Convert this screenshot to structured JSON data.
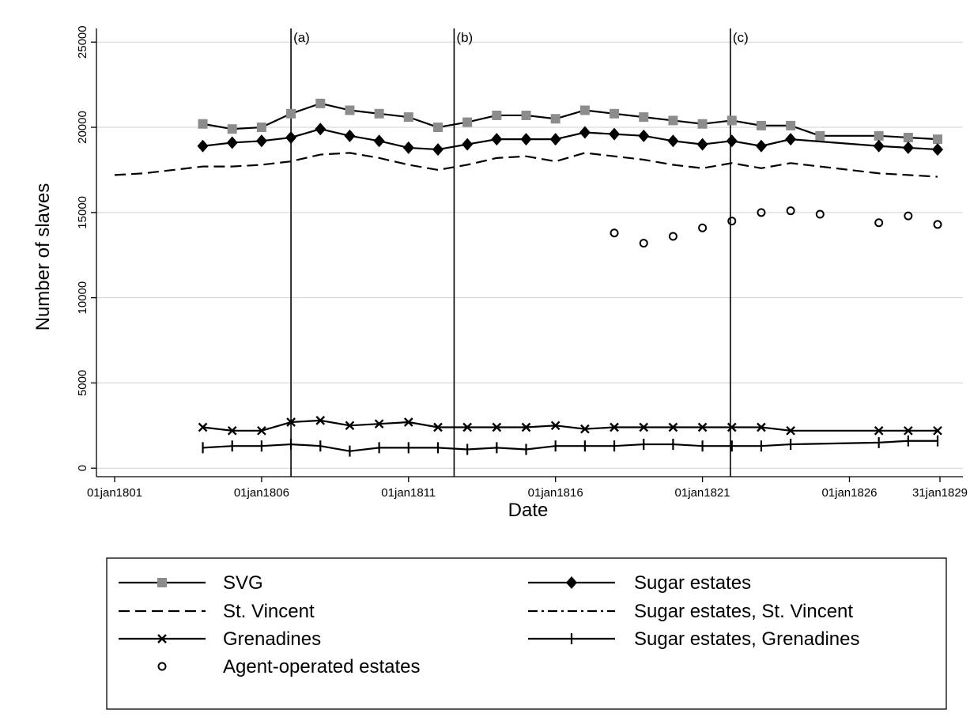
{
  "chart_data": {
    "type": "line",
    "xlabel": "Date",
    "ylabel": "Number of slaves",
    "xlim": [
      1801,
      1829.08
    ],
    "ylim": [
      -500,
      25800
    ],
    "yticks": [
      0,
      5000,
      10000,
      15000,
      20000,
      25000
    ],
    "yticklabels": [
      "0",
      "5000",
      "10000",
      "15000",
      "20000",
      "25000"
    ],
    "xticks": [
      1801,
      1806,
      1811,
      1816,
      1821,
      1826,
      1829.08
    ],
    "xticklabels": [
      "01jan1801",
      "01jan1806",
      "01jan1811",
      "01jan1816",
      "01jan1821",
      "01jan1826",
      "31jan1829"
    ],
    "grid": true,
    "reference_lines": [
      {
        "x": 1807,
        "label": "(a)"
      },
      {
        "x": 1812.55,
        "label": "(b)"
      },
      {
        "x": 1821.95,
        "label": "(c)"
      }
    ],
    "series": [
      {
        "name": "SVG",
        "style": "solid",
        "marker": "square",
        "color": "#8c8c8c",
        "x": [
          1804,
          1805,
          1806,
          1807,
          1808,
          1809,
          1810,
          1811,
          1812,
          1813,
          1814,
          1815,
          1816,
          1817,
          1818,
          1819,
          1820,
          1821,
          1822,
          1823,
          1824,
          1825,
          1827,
          1828,
          1829
        ],
        "y": [
          20200,
          19900,
          20000,
          20800,
          21400,
          21000,
          20800,
          20600,
          20000,
          20300,
          20700,
          20700,
          20500,
          21000,
          20800,
          20600,
          20400,
          20200,
          20400,
          20100,
          20100,
          19500,
          19500,
          19400,
          19300
        ]
      },
      {
        "name": "Sugar estates",
        "style": "solid",
        "marker": "diamond",
        "color": "#000000",
        "x": [
          1804,
          1805,
          1806,
          1807,
          1808,
          1809,
          1810,
          1811,
          1812,
          1813,
          1814,
          1815,
          1816,
          1817,
          1818,
          1819,
          1820,
          1821,
          1822,
          1823,
          1824,
          1827,
          1828,
          1829
        ],
        "y": [
          18900,
          19100,
          19200,
          19400,
          19900,
          19500,
          19200,
          18800,
          18700,
          19000,
          19300,
          19300,
          19300,
          19700,
          19600,
          19500,
          19200,
          19000,
          19200,
          18900,
          19300,
          18900,
          18800,
          18700
        ]
      },
      {
        "name": "St. Vincent",
        "style": "dash",
        "marker": "none",
        "color": "#000000",
        "x": [
          1801,
          1802,
          1803,
          1804,
          1805,
          1806,
          1807,
          1808,
          1809,
          1810,
          1811,
          1812,
          1813,
          1814,
          1815,
          1816,
          1817,
          1818,
          1819,
          1820,
          1821,
          1822,
          1823,
          1824,
          1825,
          1826,
          1827,
          1828,
          1829
        ],
        "y": [
          17200,
          17300,
          17500,
          17700,
          17700,
          17800,
          18000,
          18400,
          18500,
          18200,
          17800,
          17500,
          17800,
          18200,
          18300,
          18000,
          18500,
          18300,
          18100,
          17800,
          17600,
          17900,
          17600,
          17900,
          17700,
          17500,
          17300,
          17200,
          17100
        ]
      },
      {
        "name": "Sugar estates, St. Vincent",
        "style": "dashdot",
        "marker": "none",
        "color": "#000000",
        "x": [],
        "y": []
      },
      {
        "name": "Grenadines",
        "style": "solid",
        "marker": "x",
        "color": "#000000",
        "x": [
          1804,
          1805,
          1806,
          1807,
          1808,
          1809,
          1810,
          1811,
          1812,
          1813,
          1814,
          1815,
          1816,
          1817,
          1818,
          1819,
          1820,
          1821,
          1822,
          1823,
          1824,
          1827,
          1828,
          1829
        ],
        "y": [
          2400,
          2200,
          2200,
          2700,
          2800,
          2500,
          2600,
          2700,
          2400,
          2400,
          2400,
          2400,
          2500,
          2300,
          2400,
          2400,
          2400,
          2400,
          2400,
          2400,
          2200,
          2200,
          2200,
          2200
        ]
      },
      {
        "name": "Sugar estates, Grenadines",
        "style": "solid",
        "marker": "plus",
        "color": "#000000",
        "x": [
          1804,
          1805,
          1806,
          1807,
          1808,
          1809,
          1810,
          1811,
          1812,
          1813,
          1814,
          1815,
          1816,
          1817,
          1818,
          1819,
          1820,
          1821,
          1822,
          1823,
          1824,
          1827,
          1828,
          1829
        ],
        "y": [
          1200,
          1300,
          1300,
          1400,
          1300,
          1000,
          1200,
          1200,
          1200,
          1100,
          1200,
          1100,
          1300,
          1300,
          1300,
          1400,
          1400,
          1300,
          1300,
          1300,
          1400,
          1500,
          1600,
          1600
        ]
      },
      {
        "name": "Agent-operated estates",
        "style": "none",
        "marker": "circle",
        "color": "#000000",
        "x": [
          1818,
          1819,
          1820,
          1821,
          1822,
          1823,
          1824,
          1825,
          1827,
          1828,
          1829
        ],
        "y": [
          13800,
          13200,
          13600,
          14100,
          14500,
          15000,
          15100,
          14900,
          14400,
          14800,
          14300
        ]
      }
    ]
  }
}
